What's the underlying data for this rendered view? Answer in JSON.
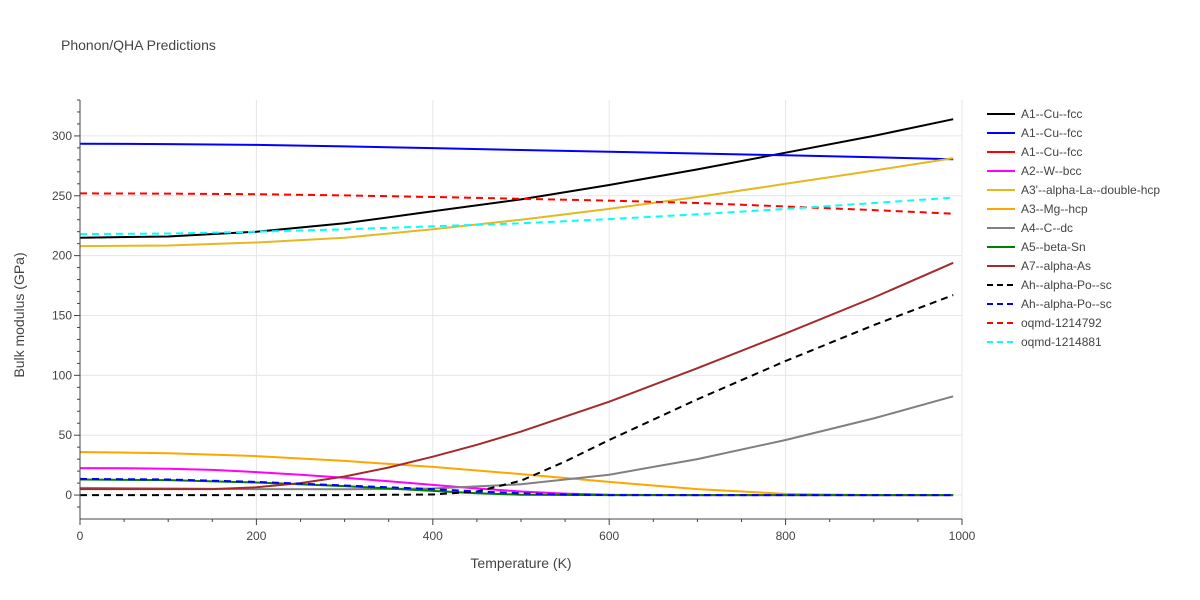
{
  "chart_data": {
    "type": "line",
    "title": "Phonon/QHA Predictions",
    "xlabel": "Temperature (K)",
    "ylabel": "Bulk modulus (GPa)",
    "xlim": [
      0,
      1000
    ],
    "ylim": [
      -20,
      330
    ],
    "xticks": [
      0,
      200,
      400,
      600,
      800,
      1000
    ],
    "yticks": [
      0,
      50,
      100,
      150,
      200,
      250,
      300
    ],
    "grid": true,
    "legend_position": "right",
    "series": [
      {
        "name": "A1--Cu--fcc",
        "color": "#000000",
        "dash": "solid",
        "x": [
          0,
          100,
          200,
          300,
          400,
          500,
          600,
          700,
          800,
          900,
          990
        ],
        "y": [
          215,
          216,
          220,
          227,
          237,
          247,
          259,
          272,
          286,
          300,
          314
        ]
      },
      {
        "name": "A1--Cu--fcc",
        "color": "#0000ff",
        "dash": "solid",
        "x": [
          0,
          100,
          200,
          300,
          400,
          500,
          600,
          700,
          800,
          900,
          990
        ],
        "y": [
          293.5,
          293.2,
          292.5,
          291.2,
          289.8,
          288.2,
          286.8,
          285.3,
          283.8,
          282.2,
          280.5
        ]
      },
      {
        "name": "A1--Cu--fcc",
        "color": "#ff0000",
        "dash": "solid",
        "x": [
          0,
          990
        ],
        "y": [
          null,
          null
        ]
      },
      {
        "name": "A2--W--bcc",
        "color": "#ff00ff",
        "dash": "solid",
        "x": [
          0,
          50,
          100,
          150,
          200,
          250,
          300,
          350,
          400,
          450,
          500,
          550,
          600,
          700,
          800,
          900,
          990
        ],
        "y": [
          22.5,
          22.4,
          22,
          21,
          19.2,
          17,
          14.5,
          11.5,
          8.5,
          5.5,
          3,
          1.2,
          0.2,
          0,
          0,
          0,
          0
        ]
      },
      {
        "name": "A3'--alpha-La--double-hcp",
        "color": "#e6b820",
        "dash": "solid",
        "x": [
          0,
          100,
          200,
          300,
          400,
          500,
          600,
          700,
          800,
          900,
          990
        ],
        "y": [
          208,
          208.5,
          211,
          215,
          222,
          230,
          239,
          249,
          260,
          271,
          281.5
        ]
      },
      {
        "name": "A3--Mg--hcp",
        "color": "#ffa500",
        "dash": "solid",
        "x": [
          0,
          100,
          200,
          300,
          400,
          500,
          600,
          700,
          800,
          900,
          990
        ],
        "y": [
          36,
          35,
          32.5,
          28.5,
          23.5,
          17.5,
          11,
          5,
          1,
          0,
          0
        ]
      },
      {
        "name": "A4--C--dc",
        "color": "#808080",
        "dash": "solid",
        "x": [
          0,
          100,
          200,
          300,
          400,
          500,
          600,
          700,
          800,
          900,
          990
        ],
        "y": [
          6,
          5.5,
          5,
          4.8,
          5.5,
          9,
          17,
          30,
          46,
          64,
          82.5
        ]
      },
      {
        "name": "A5--beta-Sn",
        "color": "#008000",
        "dash": "solid",
        "x": [
          0,
          100,
          200,
          300,
          400,
          450,
          500,
          600,
          700,
          800,
          900,
          990
        ],
        "y": [
          13,
          12.5,
          10.5,
          7.5,
          3.5,
          1.5,
          0.3,
          0,
          0,
          0,
          0,
          0
        ]
      },
      {
        "name": "A7--alpha-As",
        "color": "#a52a2a",
        "dash": "solid",
        "x": [
          0,
          100,
          150,
          200,
          250,
          300,
          350,
          400,
          450,
          500,
          600,
          700,
          800,
          900,
          990
        ],
        "y": [
          5,
          5,
          5,
          6.5,
          10,
          15.5,
          23,
          32,
          42,
          53,
          78,
          106,
          135,
          165,
          194
        ]
      },
      {
        "name": "Ah--alpha-Po--sc",
        "color": "#000000",
        "dash": "dash",
        "x": [
          0,
          100,
          200,
          300,
          400,
          450,
          500,
          550,
          600,
          700,
          800,
          900,
          990
        ],
        "y": [
          0,
          0,
          0,
          0,
          0.5,
          3,
          12,
          28,
          46,
          80,
          112,
          142,
          167
        ]
      },
      {
        "name": "Ah--alpha-Po--sc",
        "color": "#0000ff",
        "dash": "dash",
        "x": [
          0,
          100,
          200,
          300,
          400,
          450,
          500,
          550,
          600,
          700,
          800,
          900,
          990
        ],
        "y": [
          13.5,
          13,
          11,
          8,
          5,
          3,
          1.5,
          0.5,
          0,
          0,
          0,
          0,
          0
        ]
      },
      {
        "name": "oqmd-1214792",
        "color": "#ff0000",
        "dash": "dash",
        "x": [
          0,
          100,
          200,
          300,
          400,
          500,
          600,
          700,
          800,
          900,
          990
        ],
        "y": [
          252,
          251.8,
          251.3,
          250.3,
          249,
          247.5,
          246,
          244,
          241,
          238,
          235
        ]
      },
      {
        "name": "oqmd-1214881",
        "color": "#00ffff",
        "dash": "dash",
        "x": [
          0,
          100,
          200,
          300,
          400,
          500,
          600,
          700,
          800,
          900,
          990
        ],
        "y": [
          218,
          218.5,
          220,
          222,
          224.5,
          227,
          230.5,
          234.5,
          239,
          244,
          248.5
        ]
      }
    ]
  }
}
